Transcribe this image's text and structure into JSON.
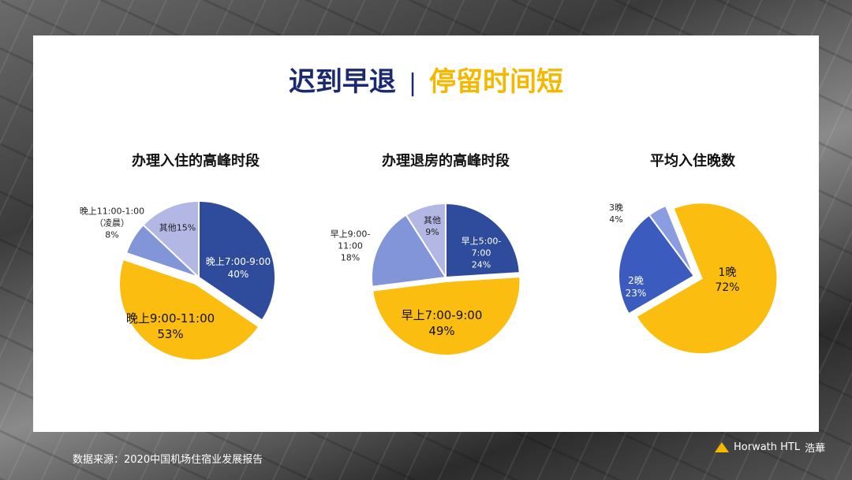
{
  "header": {
    "title_part1": "迟到早退",
    "separator": "|",
    "title_part2": "停留时间短"
  },
  "footer": {
    "source": "数据来源：2020中国机场住宿业发展报告",
    "logo": "Horwath HTL",
    "logo_cn": "浩華"
  },
  "chart_data": [
    {
      "type": "pie",
      "title": "办理入住的高峰时段",
      "categories": [
        "晚上7:00-9:00",
        "晚上9:00-11:00",
        "晚上11:00-1:00\n（凌晨）",
        "其他"
      ],
      "values": [
        40,
        53,
        8,
        15
      ],
      "value_labels": [
        "40%",
        "53%",
        "8%",
        "15%"
      ],
      "colors": [
        "#2f4b9b",
        "#fbbd10",
        "#8295d9",
        "#b3b7e4"
      ]
    },
    {
      "type": "pie",
      "title": "办理退房的高峰时段",
      "categories": [
        "早上5:00-\n7:00",
        "早上7:00-9:00",
        "早上9:00-\n11:00",
        "其他"
      ],
      "values": [
        24,
        49,
        18,
        9
      ],
      "value_labels": [
        "24%",
        "49%",
        "18%",
        "9%"
      ],
      "colors": [
        "#2f4b9b",
        "#fbbd10",
        "#8295d9",
        "#b3b7e4"
      ]
    },
    {
      "type": "pie",
      "title": "平均入住晚数",
      "categories": [
        "1晚",
        "2晚",
        "3晚"
      ],
      "values": [
        72,
        23,
        4
      ],
      "value_labels": [
        "72%",
        "23%",
        "4%"
      ],
      "colors": [
        "#fbbd10",
        "#3b5bbf",
        "#8b9ce0"
      ]
    }
  ]
}
